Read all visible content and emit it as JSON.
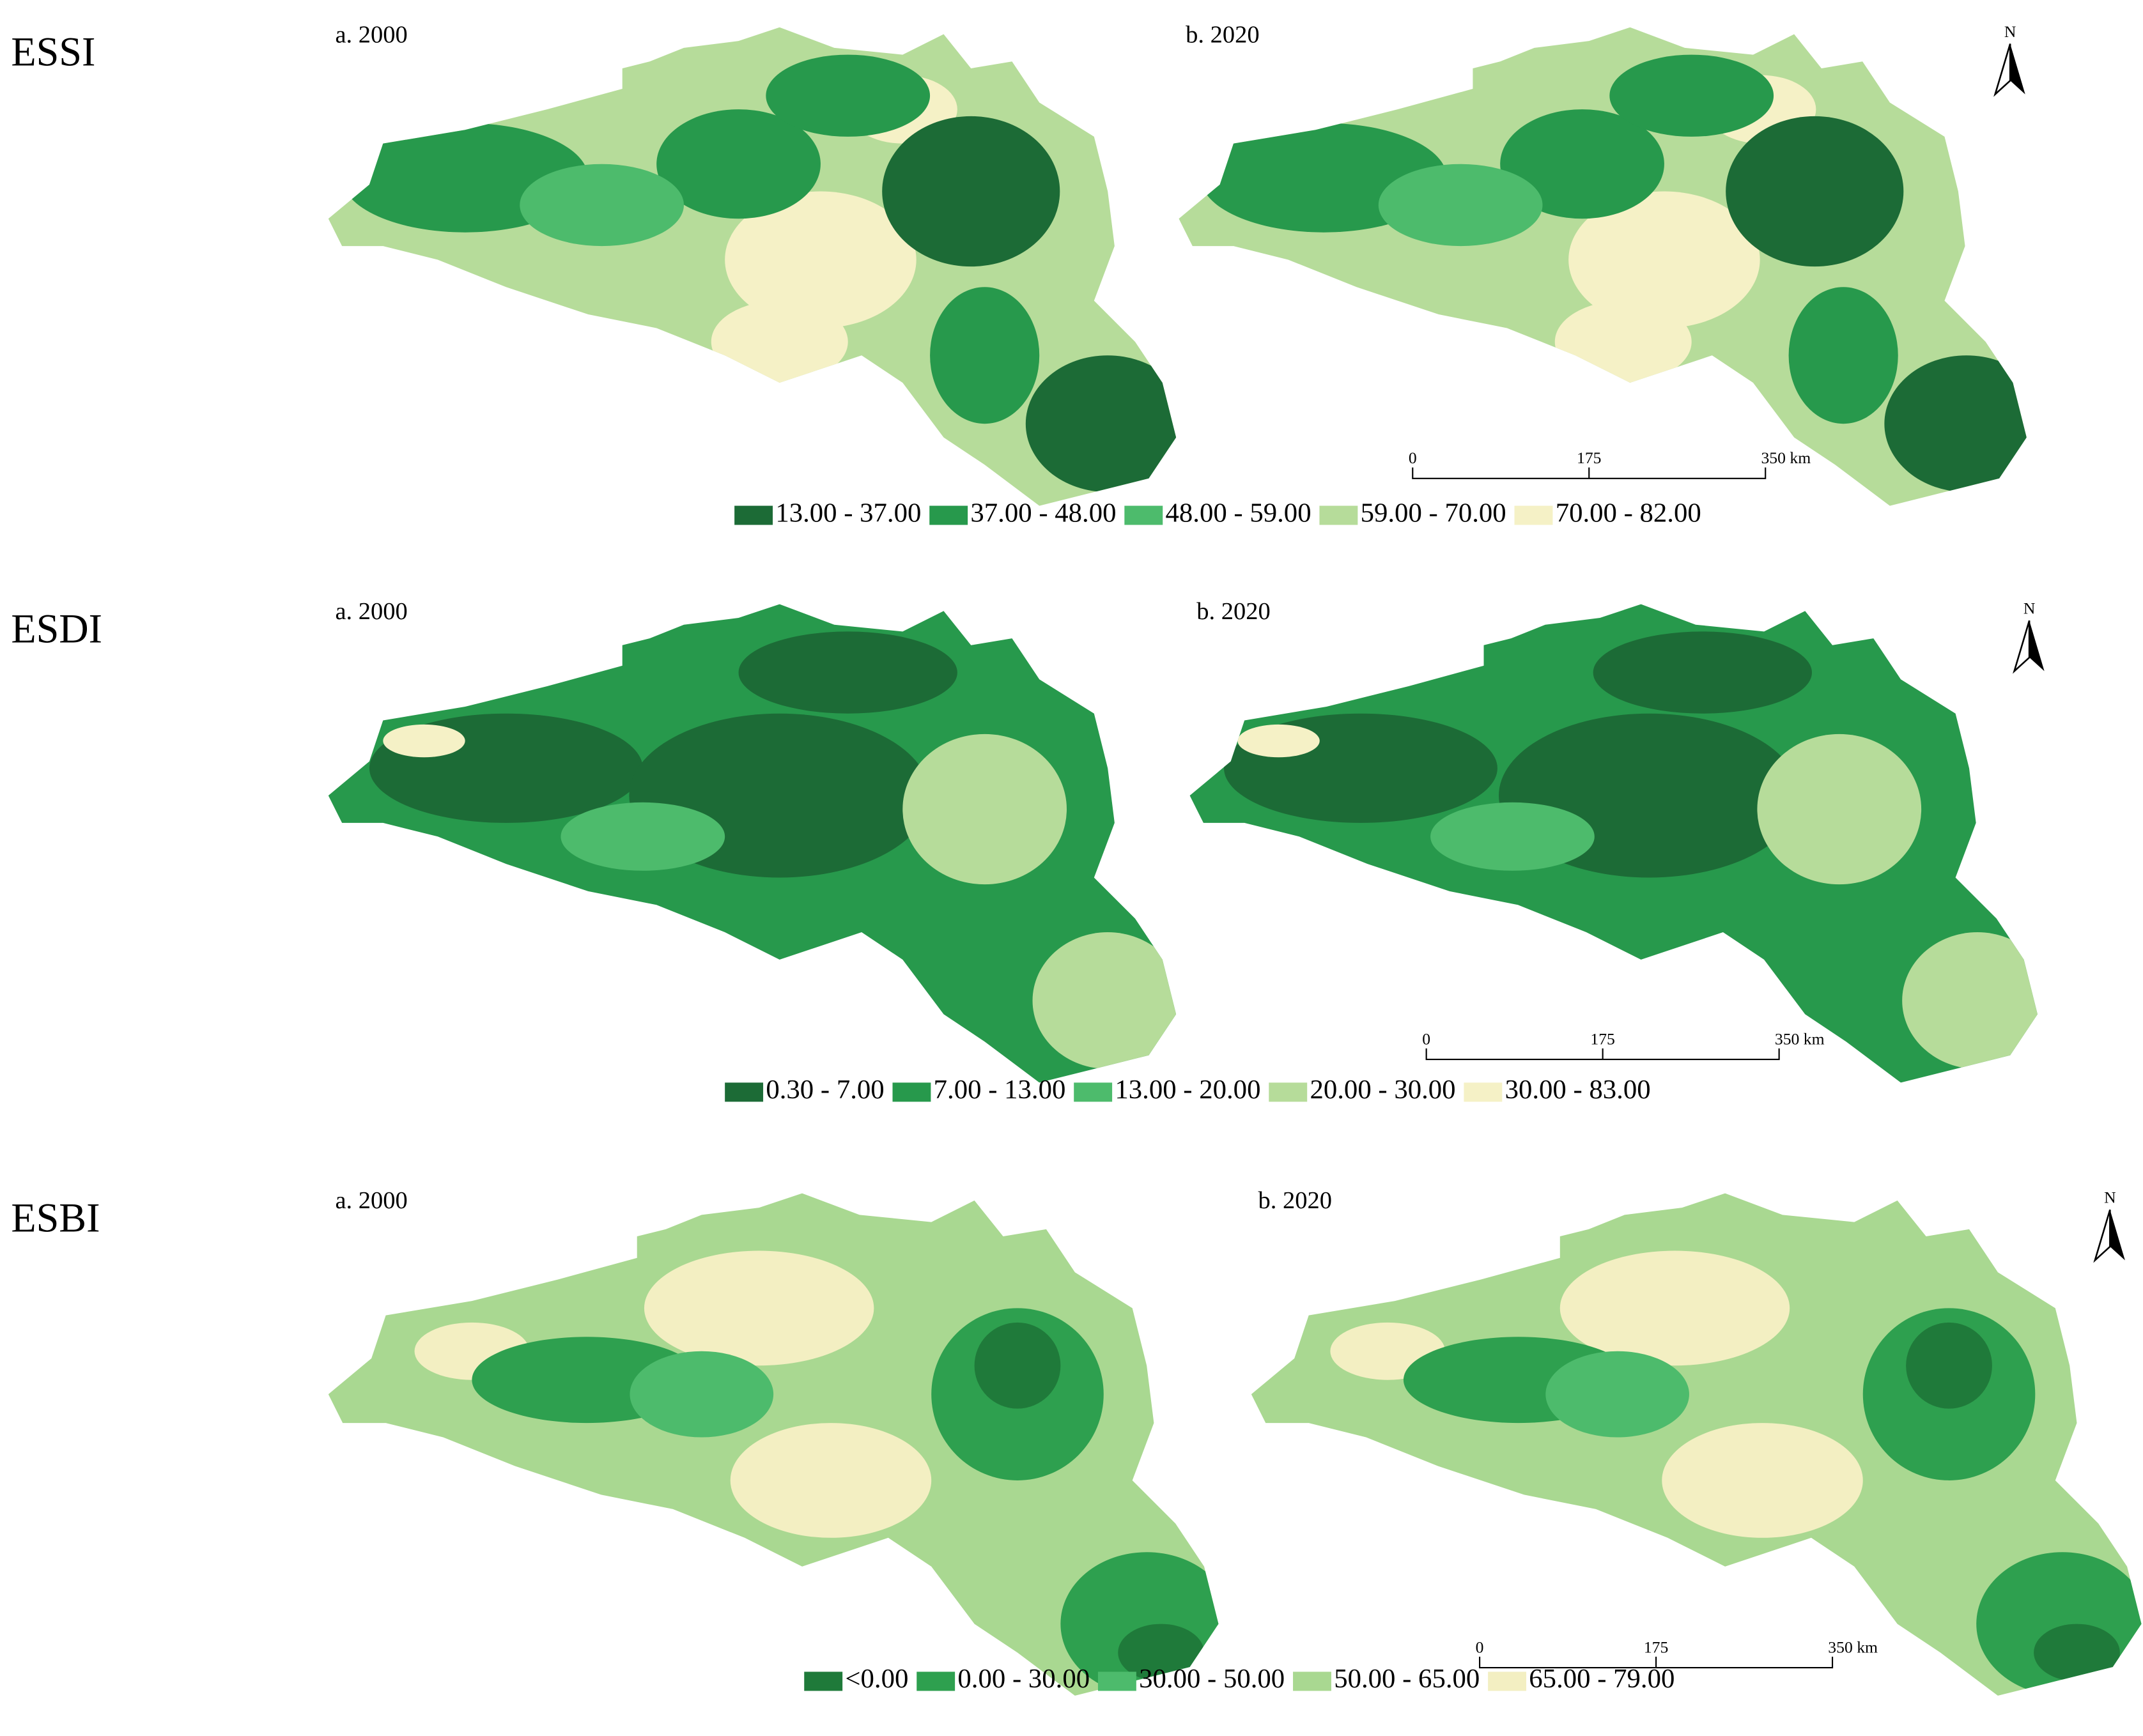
{
  "panels": [
    {
      "label": "ESSI",
      "maps": [
        "a. 2000",
        "b. 2020"
      ],
      "north": "N",
      "scale": [
        "0",
        "175",
        "350 km"
      ],
      "legend": [
        {
          "label": "13.00 - 37.00",
          "color": "#1c6b36"
        },
        {
          "label": "37.00 - 48.00",
          "color": "#27994c"
        },
        {
          "label": "48.00 - 59.00",
          "color": "#4dbb6c"
        },
        {
          "label": "59.00 - 70.00",
          "color": "#b6dc9a"
        },
        {
          "label": "70.00 - 82.00",
          "color": "#f5f1c6"
        }
      ]
    },
    {
      "label": "ESDI",
      "maps": [
        "a. 2000",
        "b. 2020"
      ],
      "north": "N",
      "scale": [
        "0",
        "175",
        "350 km"
      ],
      "legend": [
        {
          "label": "0.30 - 7.00",
          "color": "#1c6b36"
        },
        {
          "label": "7.00 - 13.00",
          "color": "#27994c"
        },
        {
          "label": "13.00 - 20.00",
          "color": "#4dbb6c"
        },
        {
          "label": "20.00 - 30.00",
          "color": "#b6dc9a"
        },
        {
          "label": "30.00 - 83.00",
          "color": "#f5f1c6"
        }
      ]
    },
    {
      "label": "ESBI",
      "maps": [
        "a. 2000",
        "b. 2020"
      ],
      "north": "N",
      "scale": [
        "0",
        "175",
        "350 km"
      ],
      "legend": [
        {
          "label": "<0.00",
          "color": "#1f7a3a"
        },
        {
          "label": "0.00 - 30.00",
          "color": "#2ea04f"
        },
        {
          "label": "30.00 - 50.00",
          "color": "#4dbb6c"
        },
        {
          "label": "50.00 - 65.00",
          "color": "#a9d891"
        },
        {
          "label": "65.00 - 79.00",
          "color": "#f3efc2"
        }
      ]
    }
  ]
}
